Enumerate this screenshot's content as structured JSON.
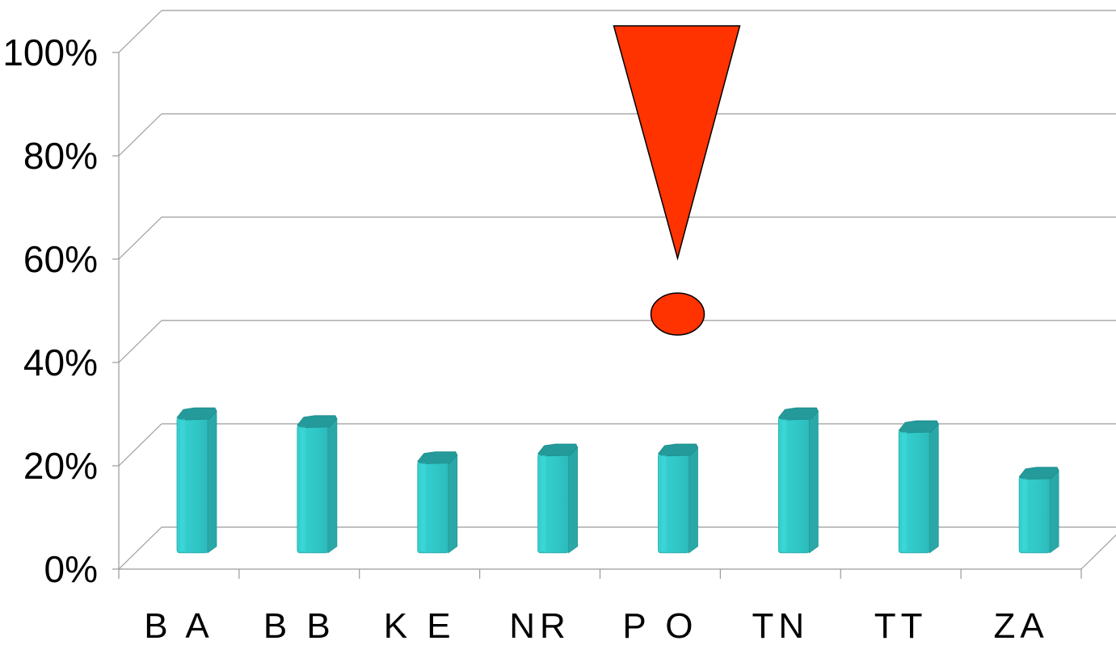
{
  "chart_data": {
    "type": "bar",
    "categories": [
      "BA",
      "BB",
      "KE",
      "NR",
      "PO",
      "TN",
      "TT",
      "ZA"
    ],
    "category_labels": [
      "B A",
      "B B",
      "K E",
      "NR",
      "P O",
      "TN",
      "TT",
      "ZA"
    ],
    "values": [
      26.5,
      25,
      18,
      19.5,
      19.5,
      26.5,
      24,
      15
    ],
    "ylim": [
      0,
      100
    ],
    "y_ticks": [
      0,
      20,
      40,
      60,
      80,
      100
    ],
    "y_tick_labels": [
      "0%",
      "20%",
      "40%",
      "60%",
      "80%",
      "100%"
    ],
    "grid": true,
    "style": "3d-cylinder",
    "bar_color": "#33CCCC",
    "annotation": {
      "shape": "exclamation-mark",
      "color": "#FF3300",
      "category": "PO"
    }
  }
}
